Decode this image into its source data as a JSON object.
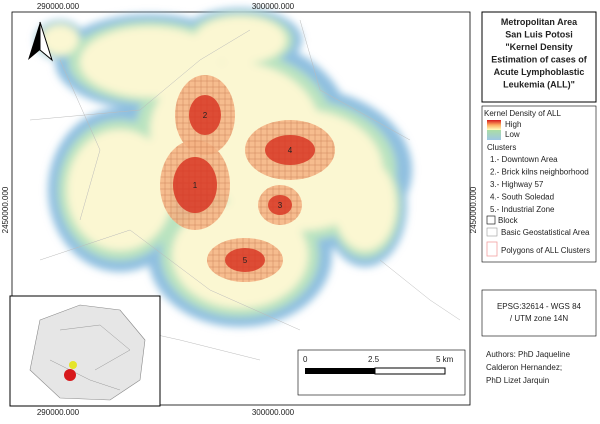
{
  "map": {
    "coords_top": [
      "290000.000",
      "300000.000"
    ],
    "coords_bottom": [
      "290000.000",
      "300000.000"
    ],
    "coords_left": [
      "2450000.000"
    ],
    "coords_right": [
      "2450000.000"
    ],
    "cluster_labels": [
      "1",
      "2",
      "3",
      "4",
      "5"
    ],
    "scale": [
      "0",
      "2.5",
      "5 km"
    ]
  },
  "title": {
    "lines": [
      "Metropolitan Area",
      "San Luis Potosi",
      "\"Kernel Density",
      "Estimation of cases of",
      "Acute Lymphoblastic",
      "Leukemia (ALL)\""
    ]
  },
  "legend": {
    "heading": "Kernel Density of ALL",
    "high": "High",
    "low": "Low",
    "clusters_heading": "Clusters",
    "clusters": [
      "1.- Downtown Area",
      "2.- Brick kilns neighborhood",
      "3.- Highway 57",
      "4.- South Soledad",
      "5.- Industrial Zone"
    ],
    "block": "Block",
    "basic_area": "Basic Geostatistical Area",
    "polygons": "Polygons of ALL Clusters"
  },
  "crs": {
    "lines": [
      "EPSG:32614 - WGS 84",
      "/ UTM zone 14N"
    ]
  },
  "authors": {
    "lines": [
      "Authors: PhD Jaqueline",
      "Calderon Hernandez;",
      "PhD Lizet Jarquin"
    ]
  }
}
